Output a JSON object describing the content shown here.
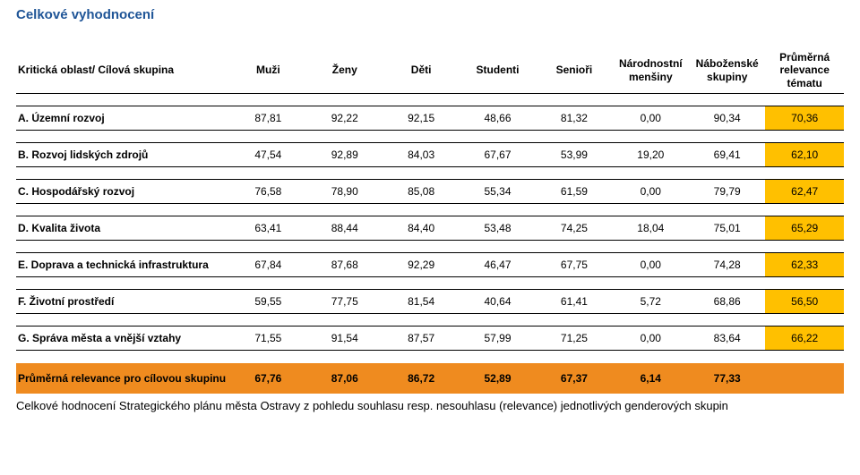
{
  "title": "Celkové vyhodnocení",
  "headers": {
    "label": "Kritická oblast/ Cílová skupina",
    "c0": "Muži",
    "c1": "Ženy",
    "c2": "Děti",
    "c3": "Studenti",
    "c4": "Senioři",
    "c5": "Národnostní menšiny",
    "c6": "Náboženské skupiny",
    "c7": "Průměrná relevance tématu"
  },
  "rows": [
    {
      "label": "A. Územní rozvoj",
      "v": [
        "87,81",
        "92,22",
        "92,15",
        "48,66",
        "81,32",
        "0,00",
        "90,34",
        "70,36"
      ]
    },
    {
      "label": "B. Rozvoj lidských zdrojů",
      "v": [
        "47,54",
        "92,89",
        "84,03",
        "67,67",
        "53,99",
        "19,20",
        "69,41",
        "62,10"
      ]
    },
    {
      "label": "C. Hospodářský rozvoj",
      "v": [
        "76,58",
        "78,90",
        "85,08",
        "55,34",
        "61,59",
        "0,00",
        "79,79",
        "62,47"
      ]
    },
    {
      "label": "D. Kvalita života",
      "v": [
        "63,41",
        "88,44",
        "84,40",
        "53,48",
        "74,25",
        "18,04",
        "75,01",
        "65,29"
      ]
    },
    {
      "label": "E. Doprava a technická infrastruktura",
      "v": [
        "67,84",
        "87,68",
        "92,29",
        "46,47",
        "67,75",
        "0,00",
        "74,28",
        "62,33"
      ]
    },
    {
      "label": "F. Životní prostředí",
      "v": [
        "59,55",
        "77,75",
        "81,54",
        "40,64",
        "61,41",
        "5,72",
        "68,86",
        "56,50"
      ]
    },
    {
      "label": "G. Správa města a vnější vztahy",
      "v": [
        "71,55",
        "91,54",
        "87,57",
        "57,99",
        "71,25",
        "0,00",
        "83,64",
        "66,22"
      ]
    }
  ],
  "total": {
    "label": "Průměrná relevance pro cílovou skupinu",
    "v": [
      "67,76",
      "87,06",
      "86,72",
      "52,89",
      "67,37",
      "6,14",
      "77,33",
      ""
    ]
  },
  "footer": "Celkové hodnocení Strategického plánu města Ostravy z pohledu souhlasu resp. nesouhlasu (relevance) jednotlivých genderových skupin",
  "colors": {
    "title": "#1f5597",
    "yellow": "#ffc000",
    "orange": "#ef8b1f",
    "border": "#000000",
    "background": "#ffffff"
  }
}
